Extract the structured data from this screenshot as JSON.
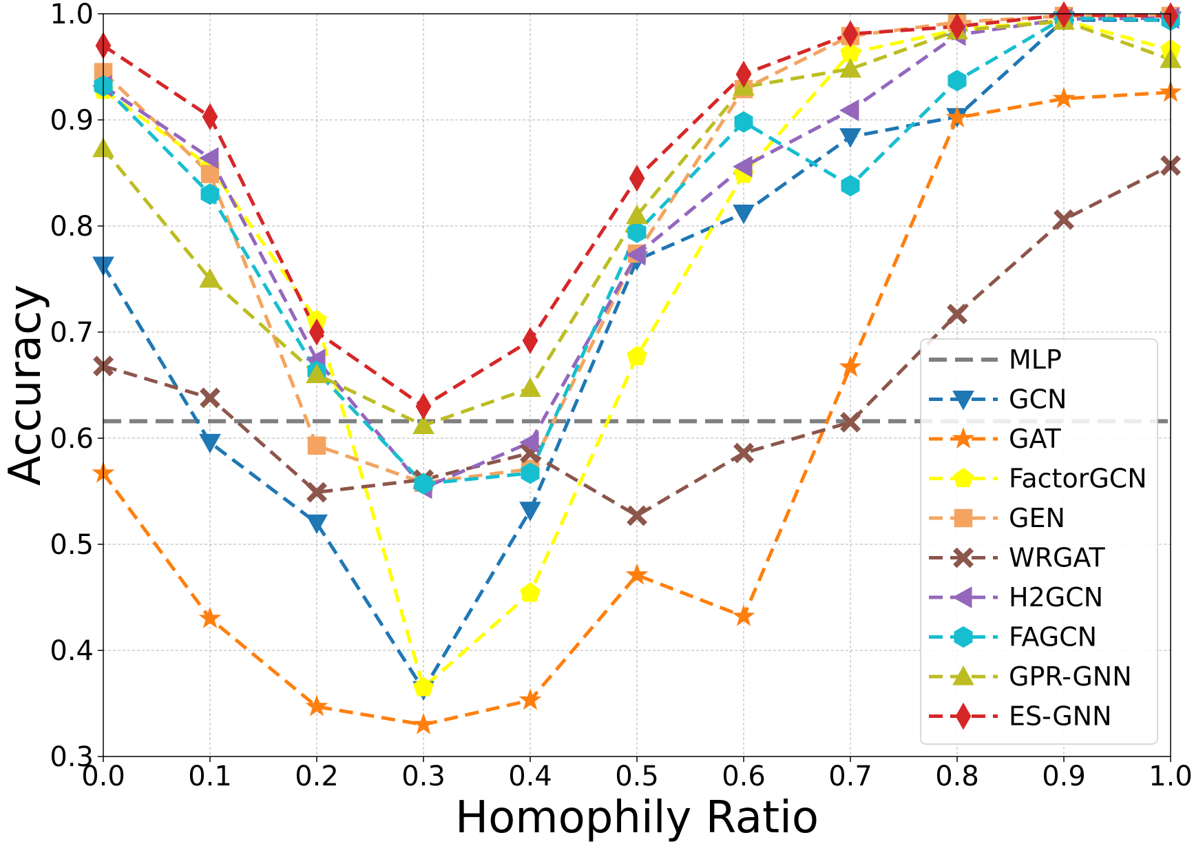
{
  "chart_data": {
    "type": "line",
    "title": "",
    "xlabel": "Homophily Ratio",
    "ylabel": "Accuracy",
    "xlim": [
      0.0,
      1.0
    ],
    "ylim": [
      0.3,
      1.0
    ],
    "grid": true,
    "legend_position": "bottom-right",
    "x": [
      0.0,
      0.1,
      0.2,
      0.3,
      0.4,
      0.5,
      0.6,
      0.7,
      0.8,
      0.9,
      1.0
    ],
    "x_tick_labels": [
      "0.0",
      "0.1",
      "0.2",
      "0.3",
      "0.4",
      "0.5",
      "0.6",
      "0.7",
      "0.8",
      "0.9",
      "1.0"
    ],
    "y_ticks": [
      0.3,
      0.4,
      0.5,
      0.6,
      0.7,
      0.8,
      0.9,
      1.0
    ],
    "y_tick_labels": [
      "0.3",
      "0.4",
      "0.5",
      "0.6",
      "0.7",
      "0.8",
      "0.9",
      "1.0"
    ],
    "series": [
      {
        "name": "MLP",
        "color": "#7f7f7f",
        "marker": "none",
        "values": [
          0.616,
          0.616,
          0.616,
          0.616,
          0.616,
          0.616,
          0.616,
          0.616,
          0.616,
          0.616,
          0.616
        ]
      },
      {
        "name": "GCN",
        "color": "#1f77b4",
        "marker": "triangle-down",
        "values": [
          0.763,
          0.596,
          0.52,
          0.363,
          0.532,
          0.768,
          0.812,
          0.884,
          0.903,
          0.994,
          0.994
        ]
      },
      {
        "name": "GAT",
        "color": "#ff7f0e",
        "marker": "star",
        "values": [
          0.567,
          0.43,
          0.347,
          0.33,
          0.353,
          0.471,
          0.432,
          0.667,
          0.902,
          0.92,
          0.926
        ]
      },
      {
        "name": "FactorGCN",
        "color": "#ffff00",
        "marker": "pentagon",
        "values": [
          0.928,
          0.856,
          0.711,
          0.365,
          0.454,
          0.677,
          0.849,
          0.963,
          0.985,
          0.994,
          0.966
        ]
      },
      {
        "name": "GEN",
        "color": "#f4a460",
        "marker": "square",
        "values": [
          0.945,
          0.849,
          0.593,
          0.558,
          0.571,
          0.774,
          0.929,
          0.979,
          0.992,
          0.998,
          0.998
        ]
      },
      {
        "name": "WRGAT",
        "color": "#8c564b",
        "marker": "x",
        "values": [
          0.668,
          0.638,
          0.549,
          0.561,
          0.586,
          0.527,
          0.586,
          0.615,
          0.717,
          0.806,
          0.857
        ]
      },
      {
        "name": "H2GCN",
        "color": "#9467bd",
        "marker": "triangle-left",
        "values": [
          0.932,
          0.864,
          0.674,
          0.553,
          0.596,
          0.773,
          0.856,
          0.909,
          0.98,
          0.995,
          0.996
        ]
      },
      {
        "name": "FAGCN",
        "color": "#17becf",
        "marker": "hexagon",
        "values": [
          0.932,
          0.83,
          0.663,
          0.557,
          0.567,
          0.794,
          0.898,
          0.838,
          0.937,
          0.996,
          0.994
        ]
      },
      {
        "name": "GPR-GNN",
        "color": "#bcbd22",
        "marker": "triangle-up",
        "values": [
          0.873,
          0.75,
          0.66,
          0.612,
          0.647,
          0.81,
          0.931,
          0.948,
          0.984,
          0.993,
          0.957
        ]
      },
      {
        "name": "ES-GNN",
        "color": "#d62728",
        "marker": "diamond",
        "values": [
          0.97,
          0.903,
          0.7,
          0.63,
          0.692,
          0.845,
          0.943,
          0.981,
          0.988,
          0.999,
          0.998
        ]
      }
    ]
  }
}
